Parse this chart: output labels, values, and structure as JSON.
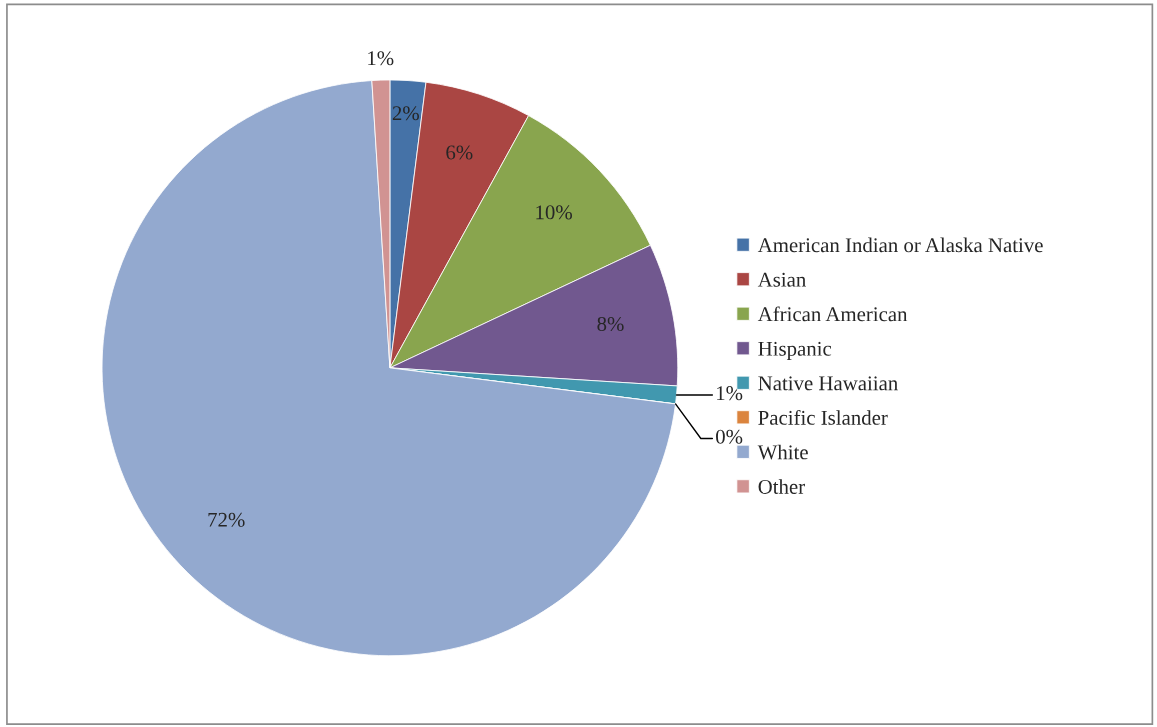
{
  "chart_data": {
    "type": "pie",
    "categories": [
      "American Indian or Alaska Native",
      "Asian",
      "African American",
      "Hispanic",
      "Native Hawaiian",
      "Pacific Islander",
      "White",
      "Other"
    ],
    "values": [
      2,
      6,
      10,
      8,
      1,
      0,
      72,
      1
    ],
    "colors": [
      "#4572a7",
      "#aa4643",
      "#89a54e",
      "#71588f",
      "#4198af",
      "#db843d",
      "#93a9cf",
      "#d19392"
    ],
    "value_labels": [
      "2%",
      "6%",
      "10%",
      "8%",
      "1%",
      "0%",
      "72%",
      "1%"
    ],
    "legend": "right"
  }
}
